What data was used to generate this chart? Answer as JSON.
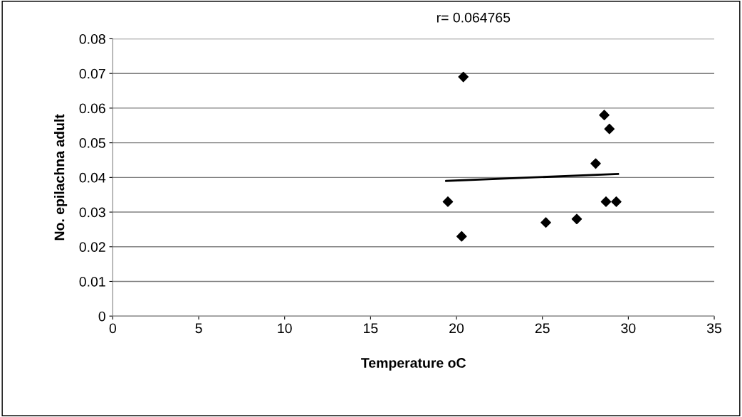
{
  "chart_data": {
    "type": "scatter",
    "xlabel": "Temperature oC",
    "ylabel": "No. epilachna adult",
    "annotations": [
      "r= 0.064765"
    ],
    "series": [
      {
        "color": "#000000",
        "marker": "diamond",
        "x": [
          19.5,
          20.4,
          20.3,
          25.2,
          27.0,
          28.1,
          28.6,
          28.9,
          28.7,
          29.3
        ],
        "values": [
          0.033,
          0.069,
          0.023,
          0.027,
          0.028,
          0.044,
          0.058,
          0.054,
          0.033,
          0.033
        ]
      },
      {
        "type": "line",
        "color": "#000000",
        "marker": "none",
        "line_style": "solid",
        "x": [
          19.4,
          29.4
        ],
        "values": [
          0.039,
          0.041
        ]
      }
    ],
    "xlim": [
      0,
      35
    ],
    "xticks": [
      0,
      5,
      10,
      15,
      20,
      25,
      30,
      35
    ],
    "ylim": [
      0,
      0.08
    ],
    "yticks": [
      0,
      0.01,
      0.02,
      0.03,
      0.04,
      0.05,
      0.06,
      0.07,
      0.08
    ],
    "grid": "y",
    "legend": false
  }
}
